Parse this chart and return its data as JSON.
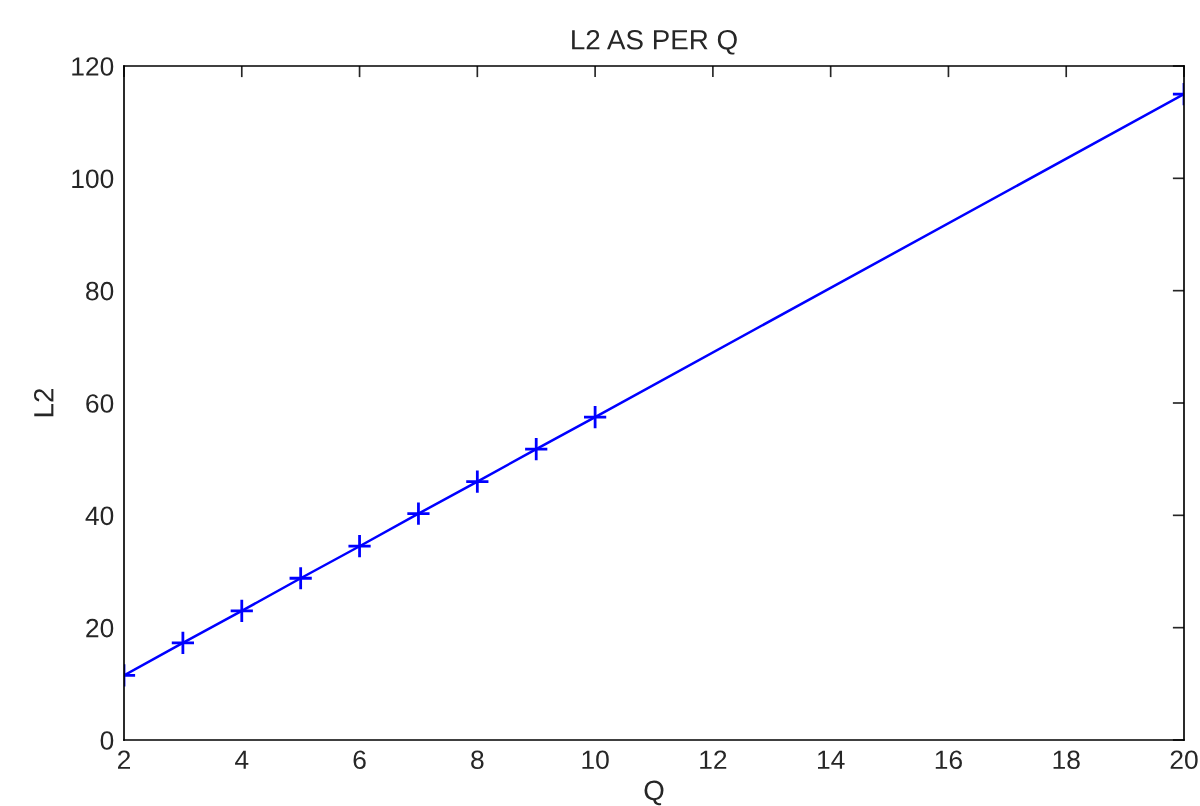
{
  "chart_data": {
    "type": "line",
    "title": "L2 AS PER Q",
    "xlabel": "Q",
    "ylabel": "L2",
    "x": [
      2,
      3,
      4,
      5,
      6,
      7,
      8,
      9,
      10,
      20
    ],
    "series": [
      {
        "color": "#0000ff",
        "values": [
          11.5,
          17.3,
          23,
          28.8,
          34.5,
          40.3,
          46,
          51.8,
          57.5,
          115
        ]
      }
    ],
    "xlim": [
      2,
      20
    ],
    "xticks": [
      2,
      4,
      6,
      8,
      10,
      12,
      14,
      16,
      18,
      20
    ],
    "ylim": [
      0,
      120
    ],
    "yticks": [
      0,
      20,
      40,
      60,
      80,
      100,
      120
    ],
    "grid": false,
    "legend": false,
    "marker": "cross",
    "line_style": "solid"
  }
}
